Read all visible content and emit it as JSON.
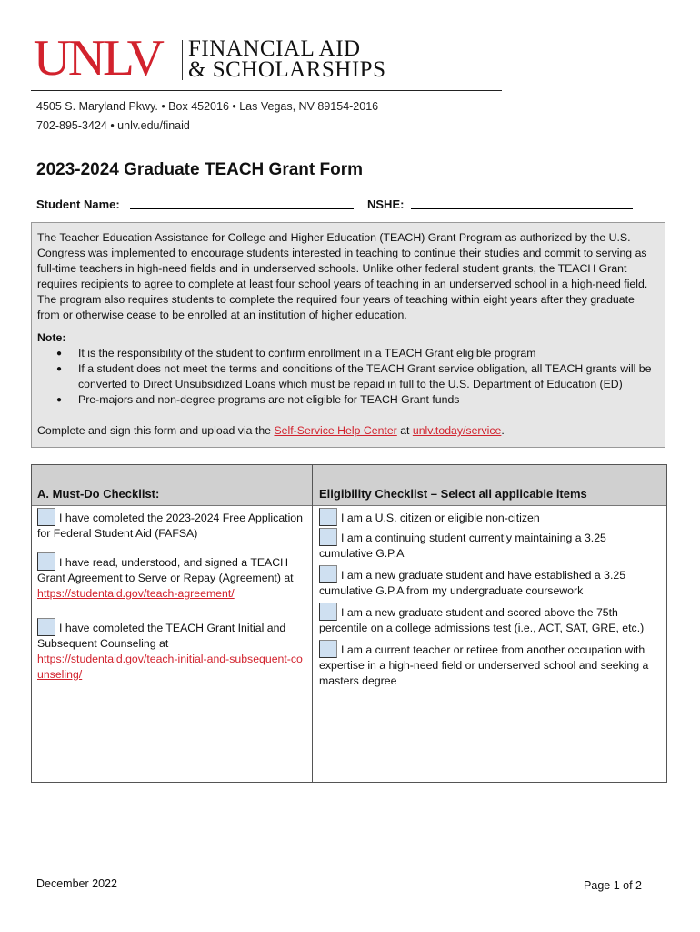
{
  "header": {
    "logo_unlv": "UNLV",
    "logo_line1": "FINANCIAL AID",
    "logo_line2": "& SCHOLARSHIPS",
    "address": "4505 S. Maryland Pkwy. • Box 452016 • Las Vegas, NV 89154-2016",
    "contact": "702-895-3424 • unlv.edu/finaid"
  },
  "title": "2023-2024 Graduate TEACH Grant Form",
  "fields": {
    "student_name": "Student Name:",
    "nshe": "NSHE:"
  },
  "info": {
    "paragraph": "The Teacher Education Assistance for College and Higher Education (TEACH) Grant Program as authorized by the U.S. Congress was implemented to encourage students interested in teaching to continue their studies and commit to serving as full-time teachers in high-need fields and in underserved schools. Unlike other federal student grants, the TEACH Grant requires recipients to agree to complete at least four school years of teaching in an underserved school in a high-need field. The program also requires students to complete the required four years of teaching within eight years after they graduate from or otherwise cease to be enrolled at an institution of higher education.",
    "note_label": "Note:",
    "notes": [
      "It is the responsibility of the student to confirm enrollment in a TEACH Grant eligible program",
      "If a student does not meet the terms and conditions of the TEACH Grant service obligation, all TEACH grants will be converted to Direct Unsubsidized Loans which must be repaid in full to the U.S. Department of Education (ED)",
      "Pre-majors and non-degree programs are not eligible for TEACH Grant funds"
    ],
    "complete_prefix": "Complete and sign this form and upload via the ",
    "complete_link1": "Self-Service Help Center",
    "complete_mid": " at ",
    "complete_link2": "unlv.today/service",
    "complete_suffix": "."
  },
  "checklist": {
    "left_header": "A. Must-Do Checklist:",
    "right_header": "Eligibility Checklist – Select all applicable items",
    "left_items": [
      {
        "text": "I have completed the 2023-2024 Free Application for Federal Student Aid (FAFSA)",
        "link": ""
      },
      {
        "text": "I have read, understood, and signed a TEACH Grant Agreement to Serve or Repay (Agreement) at",
        "link": "https://studentaid.gov/teach-agreement/"
      },
      {
        "text": "I have completed the TEACH Grant Initial and Subsequent Counseling at",
        "link": "https://studentaid.gov/teach-initial-and-subsequent-counseling/"
      }
    ],
    "right_items": [
      "I am a U.S. citizen or eligible non-citizen",
      "I am a continuing student currently maintaining a 3.25 cumulative G.P.A",
      "I am a new graduate student and have established a 3.25 cumulative G.P.A from my undergraduate coursework",
      "I am a new graduate student and scored above the 75th percentile on a college admissions test (i.e., ACT, SAT, GRE, etc.)",
      "I am a current teacher or retiree from another occupation with expertise in a high-need field or underserved school and seeking a masters degree"
    ]
  },
  "footer": {
    "date": "December 2022",
    "page": "Page 1 of 2"
  },
  "colors": {
    "brand_red": "#d2222d",
    "box_gray": "#e6e6e6",
    "checkbox_blue": "#cfe0f1"
  }
}
